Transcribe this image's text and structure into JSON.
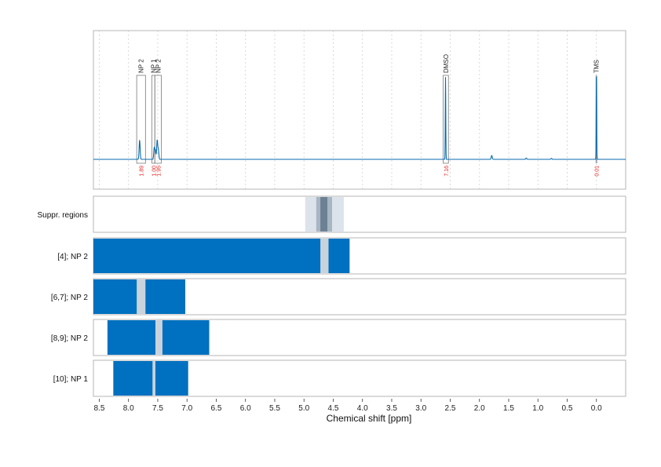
{
  "chart_data": {
    "type": "line",
    "xlabel": "Chemical shift [ppm]",
    "xlim": [
      8.6,
      -0.5
    ],
    "x_reversed": true,
    "x_ticks": [
      "8.5",
      "8.0",
      "7.5",
      "7.0",
      "6.5",
      "6.0",
      "5.5",
      "5.0",
      "4.5",
      "4.0",
      "3.5",
      "3.0",
      "2.5",
      "2.0",
      "1.5",
      "1.0",
      "0.5",
      "0.0"
    ],
    "grid": "vertical dashed",
    "colors": {
      "spectrum": "#0a6aae",
      "bar": "#0070c0",
      "gap": "#c9d3dc",
      "integration": "#e8201c",
      "box": "#7a7a7a",
      "suppr_light": "#dce3ea",
      "suppr_mid": "#a7b6c3",
      "suppr_dark": "#6d8194"
    },
    "spectrum": {
      "baseline": 0.0,
      "peaks": [
        {
          "x": 7.81,
          "h": 0.3
        },
        {
          "x": 7.56,
          "h": 0.18
        },
        {
          "x": 7.54,
          "h": 0.14
        },
        {
          "x": 7.51,
          "h": 0.3
        },
        {
          "x": 7.49,
          "h": 0.15
        },
        {
          "x": 2.58,
          "h": 1.3
        },
        {
          "x": 1.79,
          "h": 0.06
        },
        {
          "x": 1.2,
          "h": 0.02
        },
        {
          "x": 0.77,
          "h": 0.015
        },
        {
          "x": 0.0,
          "h": 1.3
        }
      ],
      "annotations": [
        {
          "label": "NP 2",
          "integral": "1.89",
          "x_from": 7.86,
          "x_to": 7.71
        },
        {
          "label": "NP 1",
          "integral": "1.00",
          "x_from": 7.6,
          "x_to": 7.55
        },
        {
          "label": "NP 2",
          "integral": "1.95",
          "x_from": 7.55,
          "x_to": 7.44
        },
        {
          "label": "DMSO",
          "integral": "7.16",
          "x_from": 2.62,
          "x_to": 2.53
        },
        {
          "label": "TMS",
          "integral": "0.01",
          "x_from": 0.02,
          "x_to": -0.02
        }
      ]
    },
    "suppression": {
      "label": "Suppr. regions",
      "bands": [
        {
          "x_from": 4.98,
          "x_to": 4.32,
          "level": "light"
        },
        {
          "x_from": 4.79,
          "x_to": 4.52,
          "level": "mid"
        },
        {
          "x_from": 4.72,
          "x_to": 4.6,
          "level": "dark"
        }
      ]
    },
    "rows": [
      {
        "label": "[4]; NP 2",
        "x_from": 8.6,
        "x_to": 4.22,
        "gap": [
          4.72,
          4.58
        ]
      },
      {
        "label": "[6,7]; NP 2",
        "x_from": 8.6,
        "x_to": 7.03,
        "gap": [
          7.86,
          7.71
        ]
      },
      {
        "label": "[8,9]; NP 2",
        "x_from": 8.36,
        "x_to": 6.62,
        "gap": [
          7.54,
          7.42
        ]
      },
      {
        "label": "[10]; NP 1",
        "x_from": 8.26,
        "x_to": 6.98,
        "gap": [
          7.59,
          7.54
        ]
      }
    ]
  }
}
